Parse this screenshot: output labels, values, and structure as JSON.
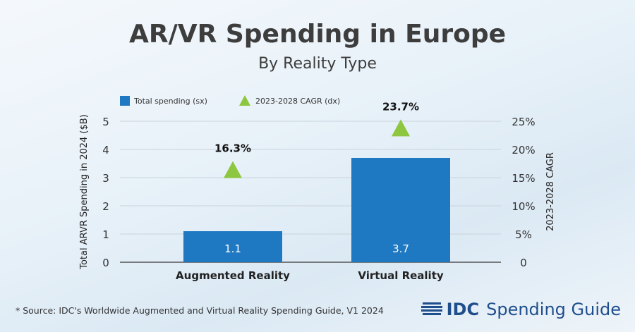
{
  "chart_data": {
    "type": "bar",
    "title": "AR/VR Spending in Europe",
    "subtitle": "By Reality Type",
    "categories": [
      "Augmented Reality",
      "Virtual Reality"
    ],
    "series": [
      {
        "name": "Total spending (sx)",
        "values": [
          1.1,
          3.7
        ],
        "data_labels": [
          "1.1",
          "3.7"
        ],
        "color": "#1e78c2",
        "axis": "left"
      },
      {
        "name": "2023-2028 CAGR (dx)",
        "values": [
          16.3,
          23.7
        ],
        "data_labels": [
          "16.3%",
          "23.7%"
        ],
        "color": "#8dc63f",
        "axis": "right",
        "marker": "triangle"
      }
    ],
    "ylabel": "Total ARVR Spending in 2024 ($B)",
    "ylim": [
      0,
      5
    ],
    "yticks": [
      "0",
      "1",
      "2",
      "3",
      "4",
      "5"
    ],
    "y2label": "2023-2028 CAGR",
    "y2lim": [
      0,
      25
    ],
    "y2ticks": [
      "0",
      "5%",
      "10%",
      "15%",
      "20%",
      "25%"
    ],
    "grid": true,
    "legend": "top-left"
  },
  "footnote": "* Source: IDC's Worldwide Augmented and Virtual Reality Spending Guide, V1 2024",
  "brand": {
    "logo": "IDC",
    "product": "Spending Guide"
  }
}
